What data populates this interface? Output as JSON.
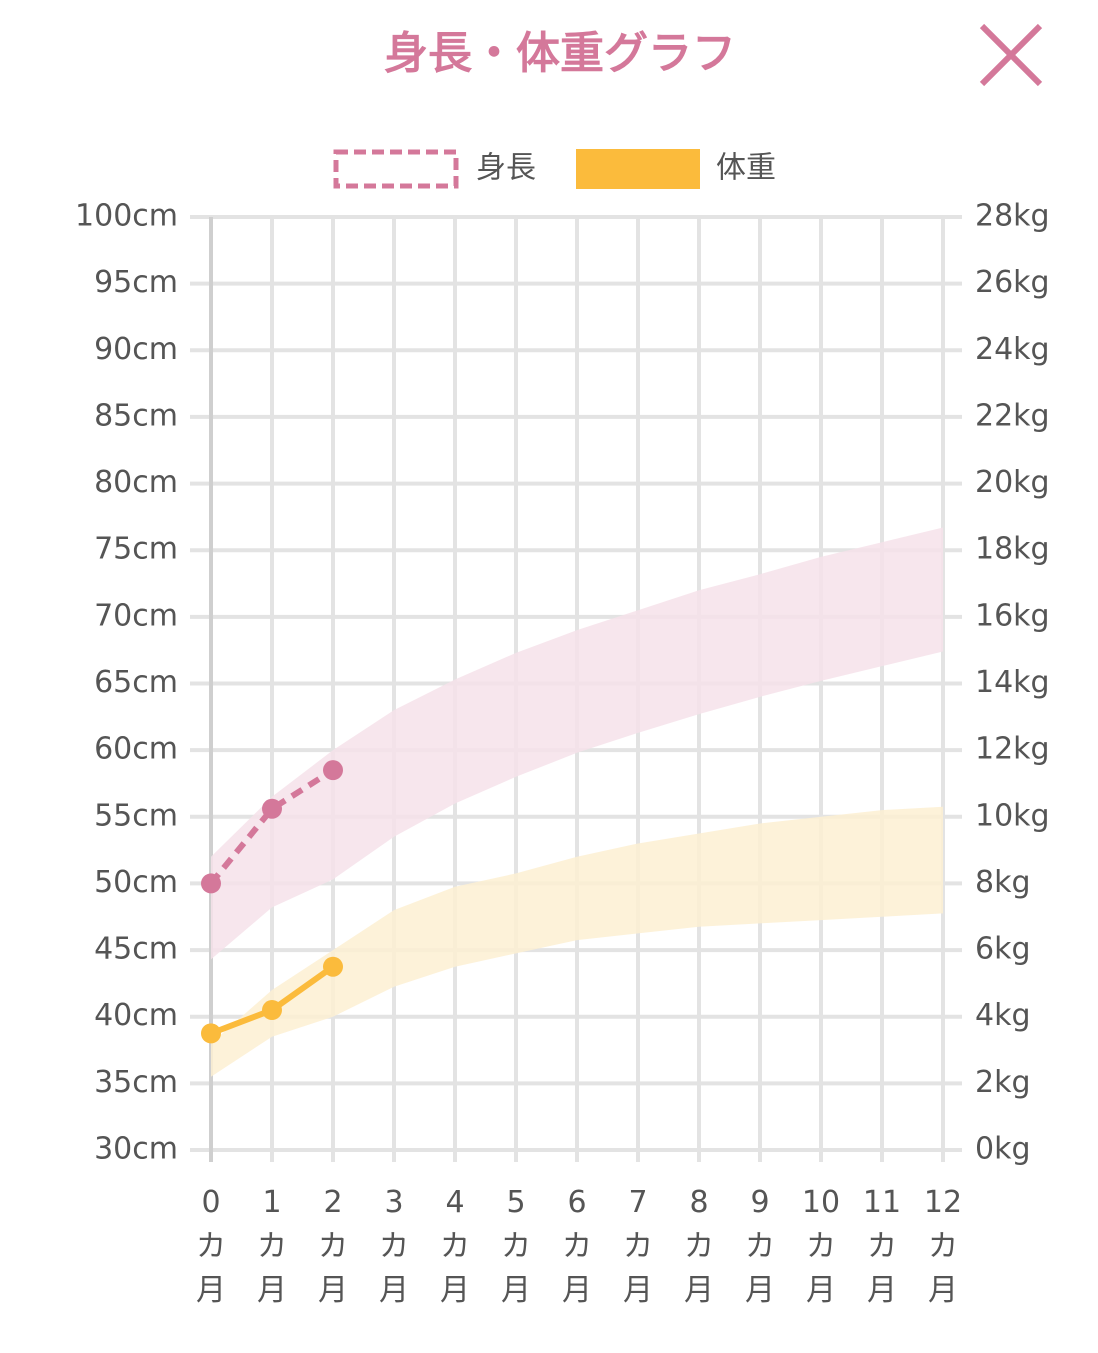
{
  "chart_data": {
    "type": "line",
    "title": "身長・体重グラフ",
    "x": [
      0,
      1,
      2,
      3,
      4,
      5,
      6,
      7,
      8,
      9,
      10,
      11,
      12
    ],
    "xlim": [
      0,
      12
    ],
    "xticks": [
      {
        "value": 0,
        "label": "0カ月"
      },
      {
        "value": 1,
        "label": "1カ月"
      },
      {
        "value": 2,
        "label": "2カ月"
      },
      {
        "value": 3,
        "label": "3カ月"
      },
      {
        "value": 4,
        "label": "4カ月"
      },
      {
        "value": 5,
        "label": "5カ月"
      },
      {
        "value": 6,
        "label": "6カ月"
      },
      {
        "value": 7,
        "label": "7カ月"
      },
      {
        "value": 8,
        "label": "8カ月"
      },
      {
        "value": 9,
        "label": "9カ月"
      },
      {
        "value": 10,
        "label": "10カ月"
      },
      {
        "value": 11,
        "label": "11カ月"
      },
      {
        "value": 12,
        "label": "12カ月"
      }
    ],
    "ylim": [
      30,
      100
    ],
    "yticks": [
      {
        "value": 30,
        "label": "30cm"
      },
      {
        "value": 35,
        "label": "35cm"
      },
      {
        "value": 40,
        "label": "40cm"
      },
      {
        "value": 45,
        "label": "45cm"
      },
      {
        "value": 50,
        "label": "50cm"
      },
      {
        "value": 55,
        "label": "55cm"
      },
      {
        "value": 60,
        "label": "60cm"
      },
      {
        "value": 65,
        "label": "65cm"
      },
      {
        "value": 70,
        "label": "70cm"
      },
      {
        "value": 75,
        "label": "75cm"
      },
      {
        "value": 80,
        "label": "80cm"
      },
      {
        "value": 85,
        "label": "85cm"
      },
      {
        "value": 90,
        "label": "90cm"
      },
      {
        "value": 95,
        "label": "95cm"
      },
      {
        "value": 100,
        "label": "100cm"
      }
    ],
    "y2lim": [
      0,
      28
    ],
    "y2ticks": [
      {
        "value": 0,
        "label": "0kg"
      },
      {
        "value": 2,
        "label": "2kg"
      },
      {
        "value": 4,
        "label": "4kg"
      },
      {
        "value": 6,
        "label": "6kg"
      },
      {
        "value": 8,
        "label": "8kg"
      },
      {
        "value": 10,
        "label": "10kg"
      },
      {
        "value": 12,
        "label": "12kg"
      },
      {
        "value": 14,
        "label": "14kg"
      },
      {
        "value": 16,
        "label": "16kg"
      },
      {
        "value": 18,
        "label": "18kg"
      },
      {
        "value": 20,
        "label": "20kg"
      },
      {
        "value": 22,
        "label": "22kg"
      },
      {
        "value": 24,
        "label": "24kg"
      },
      {
        "value": 26,
        "label": "26kg"
      },
      {
        "value": 28,
        "label": "28kg"
      }
    ],
    "grid": true,
    "bands": [
      {
        "axis": "y",
        "color": "#f6e2ea",
        "upper": [
          52,
          56.5,
          60,
          63,
          65.3,
          67.3,
          69,
          70.5,
          72,
          73.2,
          74.5,
          75.6,
          76.7
        ],
        "lower": [
          44.3,
          48.2,
          50.3,
          53.5,
          56,
          58,
          59.8,
          61.3,
          62.7,
          64,
          65.2,
          66.3,
          67.4
        ]
      },
      {
        "axis": "y2",
        "color": "#fdf0d2",
        "upper": [
          3.2,
          4.8,
          6,
          7.2,
          7.9,
          8.3,
          8.8,
          9.2,
          9.5,
          9.8,
          10,
          10.2,
          10.3
        ],
        "lower": [
          2.2,
          3.4,
          4,
          4.9,
          5.5,
          5.9,
          6.3,
          6.5,
          6.7,
          6.8,
          6.9,
          7,
          7.1
        ]
      }
    ],
    "series": [
      {
        "name": "身長",
        "color": "#d4789a",
        "dashed": true,
        "axis": "y",
        "values": [
          50,
          55.6,
          58.5,
          null,
          null,
          null,
          null,
          null,
          null,
          null,
          null,
          null,
          null
        ]
      },
      {
        "name": "体重",
        "color": "#fbbb3c",
        "dashed": false,
        "axis": "y2",
        "values": [
          3.5,
          4.2,
          5.5,
          null,
          null,
          null,
          null,
          null,
          null,
          null,
          null,
          null,
          null
        ]
      }
    ]
  }
}
